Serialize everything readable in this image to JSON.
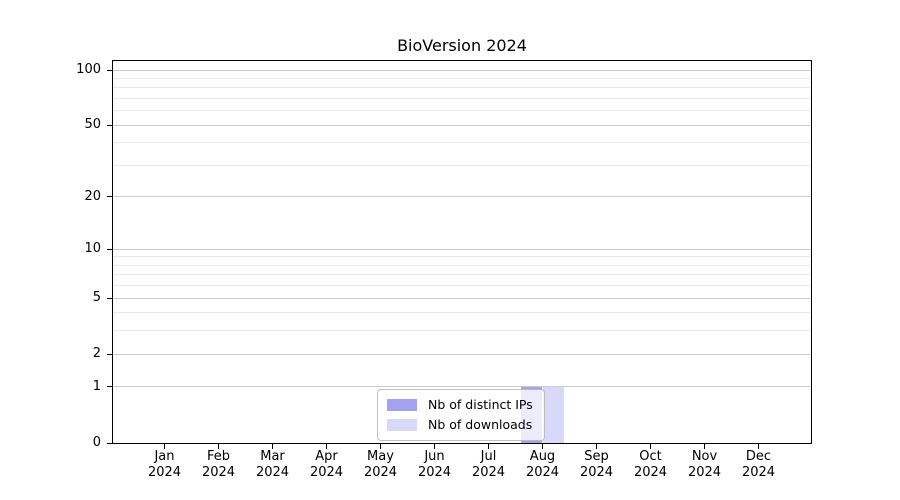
{
  "chart_data": {
    "type": "bar",
    "title": "BioVersion 2024",
    "categories": [
      "Jan",
      "Feb",
      "Mar",
      "Apr",
      "May",
      "Jun",
      "Jul",
      "Aug",
      "Sep",
      "Oct",
      "Nov",
      "Dec"
    ],
    "category_year": "2024",
    "series": [
      {
        "name": "Nb of distinct IPs",
        "color": "#a2a2ef",
        "values": [
          0,
          0,
          0,
          0,
          0,
          0,
          0,
          1,
          0,
          0,
          0,
          0
        ]
      },
      {
        "name": "Nb of downloads",
        "color": "#d8d8f8",
        "values": [
          0,
          0,
          0,
          0,
          0,
          0,
          0,
          1,
          0,
          0,
          0,
          0
        ]
      }
    ],
    "xlabel": "",
    "ylabel": "",
    "yaxis": {
      "scale": "log1p",
      "tick_values": [
        0,
        1,
        2,
        5,
        10,
        20,
        50,
        100
      ],
      "tick_labels": [
        "0",
        "1",
        "2",
        "5",
        "10",
        "20",
        "50",
        "100"
      ],
      "minor_gridline_values": [
        3,
        4,
        6,
        7,
        8,
        9,
        30,
        40,
        60,
        70,
        80,
        90
      ],
      "top_value": 112
    },
    "grid": {
      "major_color": "#cccccc",
      "minor_color": "#eaeaea",
      "vertical": false
    },
    "legend": {
      "position": "lower-center",
      "entries": [
        "Nb of distinct IPs",
        "Nb of downloads"
      ]
    },
    "colors": {
      "spine": "#000000",
      "background": "#ffffff"
    }
  }
}
